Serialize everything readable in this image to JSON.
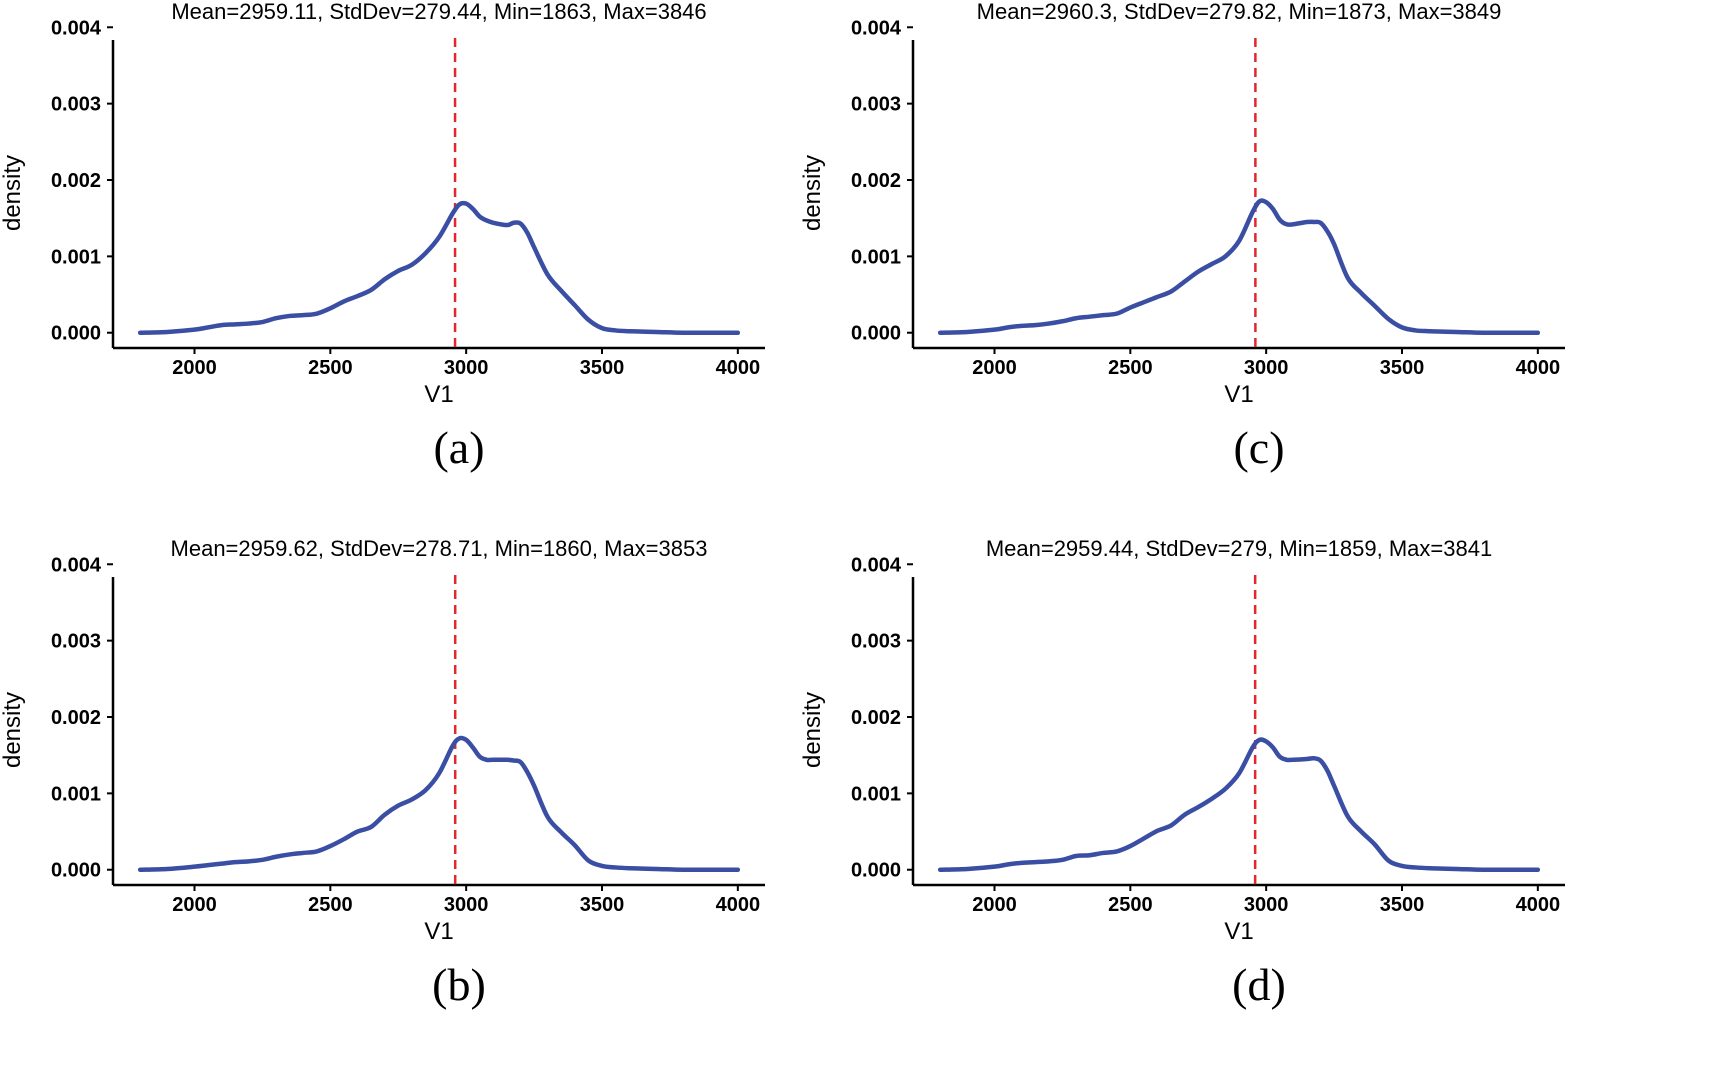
{
  "figure": {
    "colors": {
      "curve": "#3a4fa3",
      "mean_line": "#e0282e",
      "axis": "#000000"
    }
  },
  "chart_data": [
    {
      "type": "line",
      "panel_label": "(a)",
      "title": "Mean=2959.11, StdDev=279.44, Min=1863, Max=3846",
      "xlabel": "V1",
      "ylabel": "density",
      "xlim": [
        1700,
        4100
      ],
      "ylim": [
        -0.0002,
        0.0042
      ],
      "xticks": [
        2000,
        2500,
        3000,
        3500,
        4000
      ],
      "xtick_labels": [
        "2000",
        "2500",
        "3000",
        "3500",
        "4000"
      ],
      "yticks": [
        0,
        0.001,
        0.002,
        0.003,
        0.004
      ],
      "ytick_labels": [
        "0.000",
        "0.001",
        "0.002",
        "0.003",
        "0.004"
      ],
      "mean": 2959.11,
      "series": [
        {
          "name": "density",
          "x": [
            1800,
            1900,
            2000,
            2050,
            2100,
            2150,
            2200,
            2250,
            2300,
            2350,
            2400,
            2450,
            2500,
            2550,
            2600,
            2650,
            2700,
            2750,
            2800,
            2850,
            2900,
            2950,
            2975,
            3000,
            3025,
            3050,
            3075,
            3100,
            3150,
            3175,
            3200,
            3225,
            3250,
            3300,
            3350,
            3400,
            3450,
            3500,
            3550,
            3600,
            3700,
            3800,
            3900,
            4000
          ],
          "y": [
            0.0,
            1e-05,
            4e-05,
            7e-05,
            0.0001,
            0.00011,
            0.00012,
            0.00014,
            0.00019,
            0.00022,
            0.00023,
            0.00025,
            0.00032,
            0.00041,
            0.00048,
            0.00056,
            0.0007,
            0.00081,
            0.00089,
            0.00104,
            0.00125,
            0.00156,
            0.00168,
            0.00169,
            0.00162,
            0.00152,
            0.00147,
            0.00144,
            0.00141,
            0.00144,
            0.00143,
            0.00131,
            0.00112,
            0.00076,
            0.00055,
            0.00036,
            0.00017,
            6e-05,
            3e-05,
            2e-05,
            1e-05,
            0.0,
            0.0,
            0.0
          ]
        }
      ]
    },
    {
      "type": "line",
      "panel_label": "(c)",
      "title": "Mean=2960.3, StdDev=279.82, Min=1873, Max=3849",
      "xlabel": "V1",
      "ylabel": "density",
      "xlim": [
        1700,
        4100
      ],
      "ylim": [
        -0.0002,
        0.0042
      ],
      "xticks": [
        2000,
        2500,
        3000,
        3500,
        4000
      ],
      "xtick_labels": [
        "2000",
        "2500",
        "3000",
        "3500",
        "4000"
      ],
      "yticks": [
        0,
        0.001,
        0.002,
        0.003,
        0.004
      ],
      "ytick_labels": [
        "0.000",
        "0.001",
        "0.002",
        "0.003",
        "0.004"
      ],
      "mean": 2960.3,
      "series": [
        {
          "name": "density",
          "x": [
            1800,
            1900,
            2000,
            2050,
            2100,
            2150,
            2200,
            2250,
            2300,
            2350,
            2400,
            2450,
            2500,
            2550,
            2600,
            2650,
            2700,
            2750,
            2800,
            2850,
            2900,
            2950,
            2975,
            3000,
            3025,
            3050,
            3075,
            3100,
            3150,
            3175,
            3200,
            3225,
            3250,
            3300,
            3350,
            3400,
            3450,
            3500,
            3550,
            3600,
            3700,
            3800,
            3900,
            4000
          ],
          "y": [
            0.0,
            1e-05,
            4e-05,
            7e-05,
            9e-05,
            0.0001,
            0.00012,
            0.00015,
            0.00019,
            0.00021,
            0.00023,
            0.00025,
            0.00033,
            0.0004,
            0.00047,
            0.00054,
            0.00067,
            0.0008,
            0.0009,
            0.001,
            0.0012,
            0.00158,
            0.00172,
            0.00171,
            0.00162,
            0.00148,
            0.00142,
            0.00142,
            0.00145,
            0.00145,
            0.00144,
            0.00133,
            0.00116,
            0.00072,
            0.00052,
            0.00035,
            0.00018,
            7e-05,
            3e-05,
            2e-05,
            1e-05,
            0.0,
            0.0,
            0.0
          ]
        }
      ]
    },
    {
      "type": "line",
      "panel_label": "(b)",
      "title": "Mean=2959.62, StdDev=278.71, Min=1860, Max=3853",
      "xlabel": "V1",
      "ylabel": "density",
      "xlim": [
        1700,
        4100
      ],
      "ylim": [
        -0.0002,
        0.0042
      ],
      "xticks": [
        2000,
        2500,
        3000,
        3500,
        4000
      ],
      "xtick_labels": [
        "2000",
        "2500",
        "3000",
        "3500",
        "4000"
      ],
      "yticks": [
        0,
        0.001,
        0.002,
        0.003,
        0.004
      ],
      "ytick_labels": [
        "0.000",
        "0.001",
        "0.002",
        "0.003",
        "0.004"
      ],
      "mean": 2959.62,
      "series": [
        {
          "name": "density",
          "x": [
            1800,
            1900,
            2000,
            2050,
            2100,
            2150,
            2200,
            2250,
            2300,
            2350,
            2400,
            2450,
            2500,
            2550,
            2600,
            2650,
            2700,
            2750,
            2800,
            2850,
            2900,
            2950,
            2975,
            3000,
            3025,
            3050,
            3075,
            3100,
            3150,
            3175,
            3200,
            3225,
            3250,
            3300,
            3350,
            3400,
            3450,
            3500,
            3550,
            3600,
            3700,
            3800,
            3900,
            4000
          ],
          "y": [
            0.0,
            1e-05,
            4e-05,
            6e-05,
            8e-05,
            0.0001,
            0.00011,
            0.00013,
            0.00017,
            0.0002,
            0.00022,
            0.00024,
            0.00031,
            0.0004,
            0.0005,
            0.00056,
            0.00072,
            0.00084,
            0.00092,
            0.00104,
            0.00126,
            0.00162,
            0.00172,
            0.0017,
            0.0016,
            0.00148,
            0.00144,
            0.00144,
            0.00144,
            0.00143,
            0.00141,
            0.00128,
            0.0011,
            0.00069,
            0.00049,
            0.00032,
            0.00012,
            5e-05,
            3e-05,
            2e-05,
            1e-05,
            0.0,
            0.0,
            0.0
          ]
        }
      ]
    },
    {
      "type": "line",
      "panel_label": "(d)",
      "title": "Mean=2959.44, StdDev=279, Min=1859, Max=3841",
      "xlabel": "V1",
      "ylabel": "density",
      "xlim": [
        1700,
        4100
      ],
      "ylim": [
        -0.0002,
        0.0042
      ],
      "xticks": [
        2000,
        2500,
        3000,
        3500,
        4000
      ],
      "xtick_labels": [
        "2000",
        "2500",
        "3000",
        "3500",
        "4000"
      ],
      "yticks": [
        0,
        0.001,
        0.002,
        0.003,
        0.004
      ],
      "ytick_labels": [
        "0.000",
        "0.001",
        "0.002",
        "0.003",
        "0.004"
      ],
      "mean": 2959.44,
      "series": [
        {
          "name": "density",
          "x": [
            1800,
            1900,
            2000,
            2050,
            2100,
            2150,
            2200,
            2250,
            2300,
            2350,
            2400,
            2450,
            2500,
            2550,
            2600,
            2650,
            2700,
            2750,
            2800,
            2850,
            2900,
            2950,
            2975,
            3000,
            3025,
            3050,
            3075,
            3100,
            3150,
            3175,
            3200,
            3225,
            3250,
            3300,
            3350,
            3400,
            3450,
            3500,
            3550,
            3600,
            3700,
            3800,
            3900,
            4000
          ],
          "y": [
            0.0,
            1e-05,
            4e-05,
            7e-05,
            9e-05,
            0.0001,
            0.00011,
            0.00013,
            0.00018,
            0.00019,
            0.00022,
            0.00024,
            0.00031,
            0.00041,
            0.00051,
            0.00058,
            0.00072,
            0.00082,
            0.00093,
            0.00106,
            0.00126,
            0.0016,
            0.0017,
            0.00168,
            0.0016,
            0.00148,
            0.00144,
            0.00144,
            0.00145,
            0.00146,
            0.00143,
            0.0013,
            0.0011,
            0.0007,
            0.0005,
            0.00033,
            0.00012,
            5e-05,
            3e-05,
            2e-05,
            1e-05,
            0.0,
            0.0,
            0.0
          ]
        }
      ]
    }
  ]
}
